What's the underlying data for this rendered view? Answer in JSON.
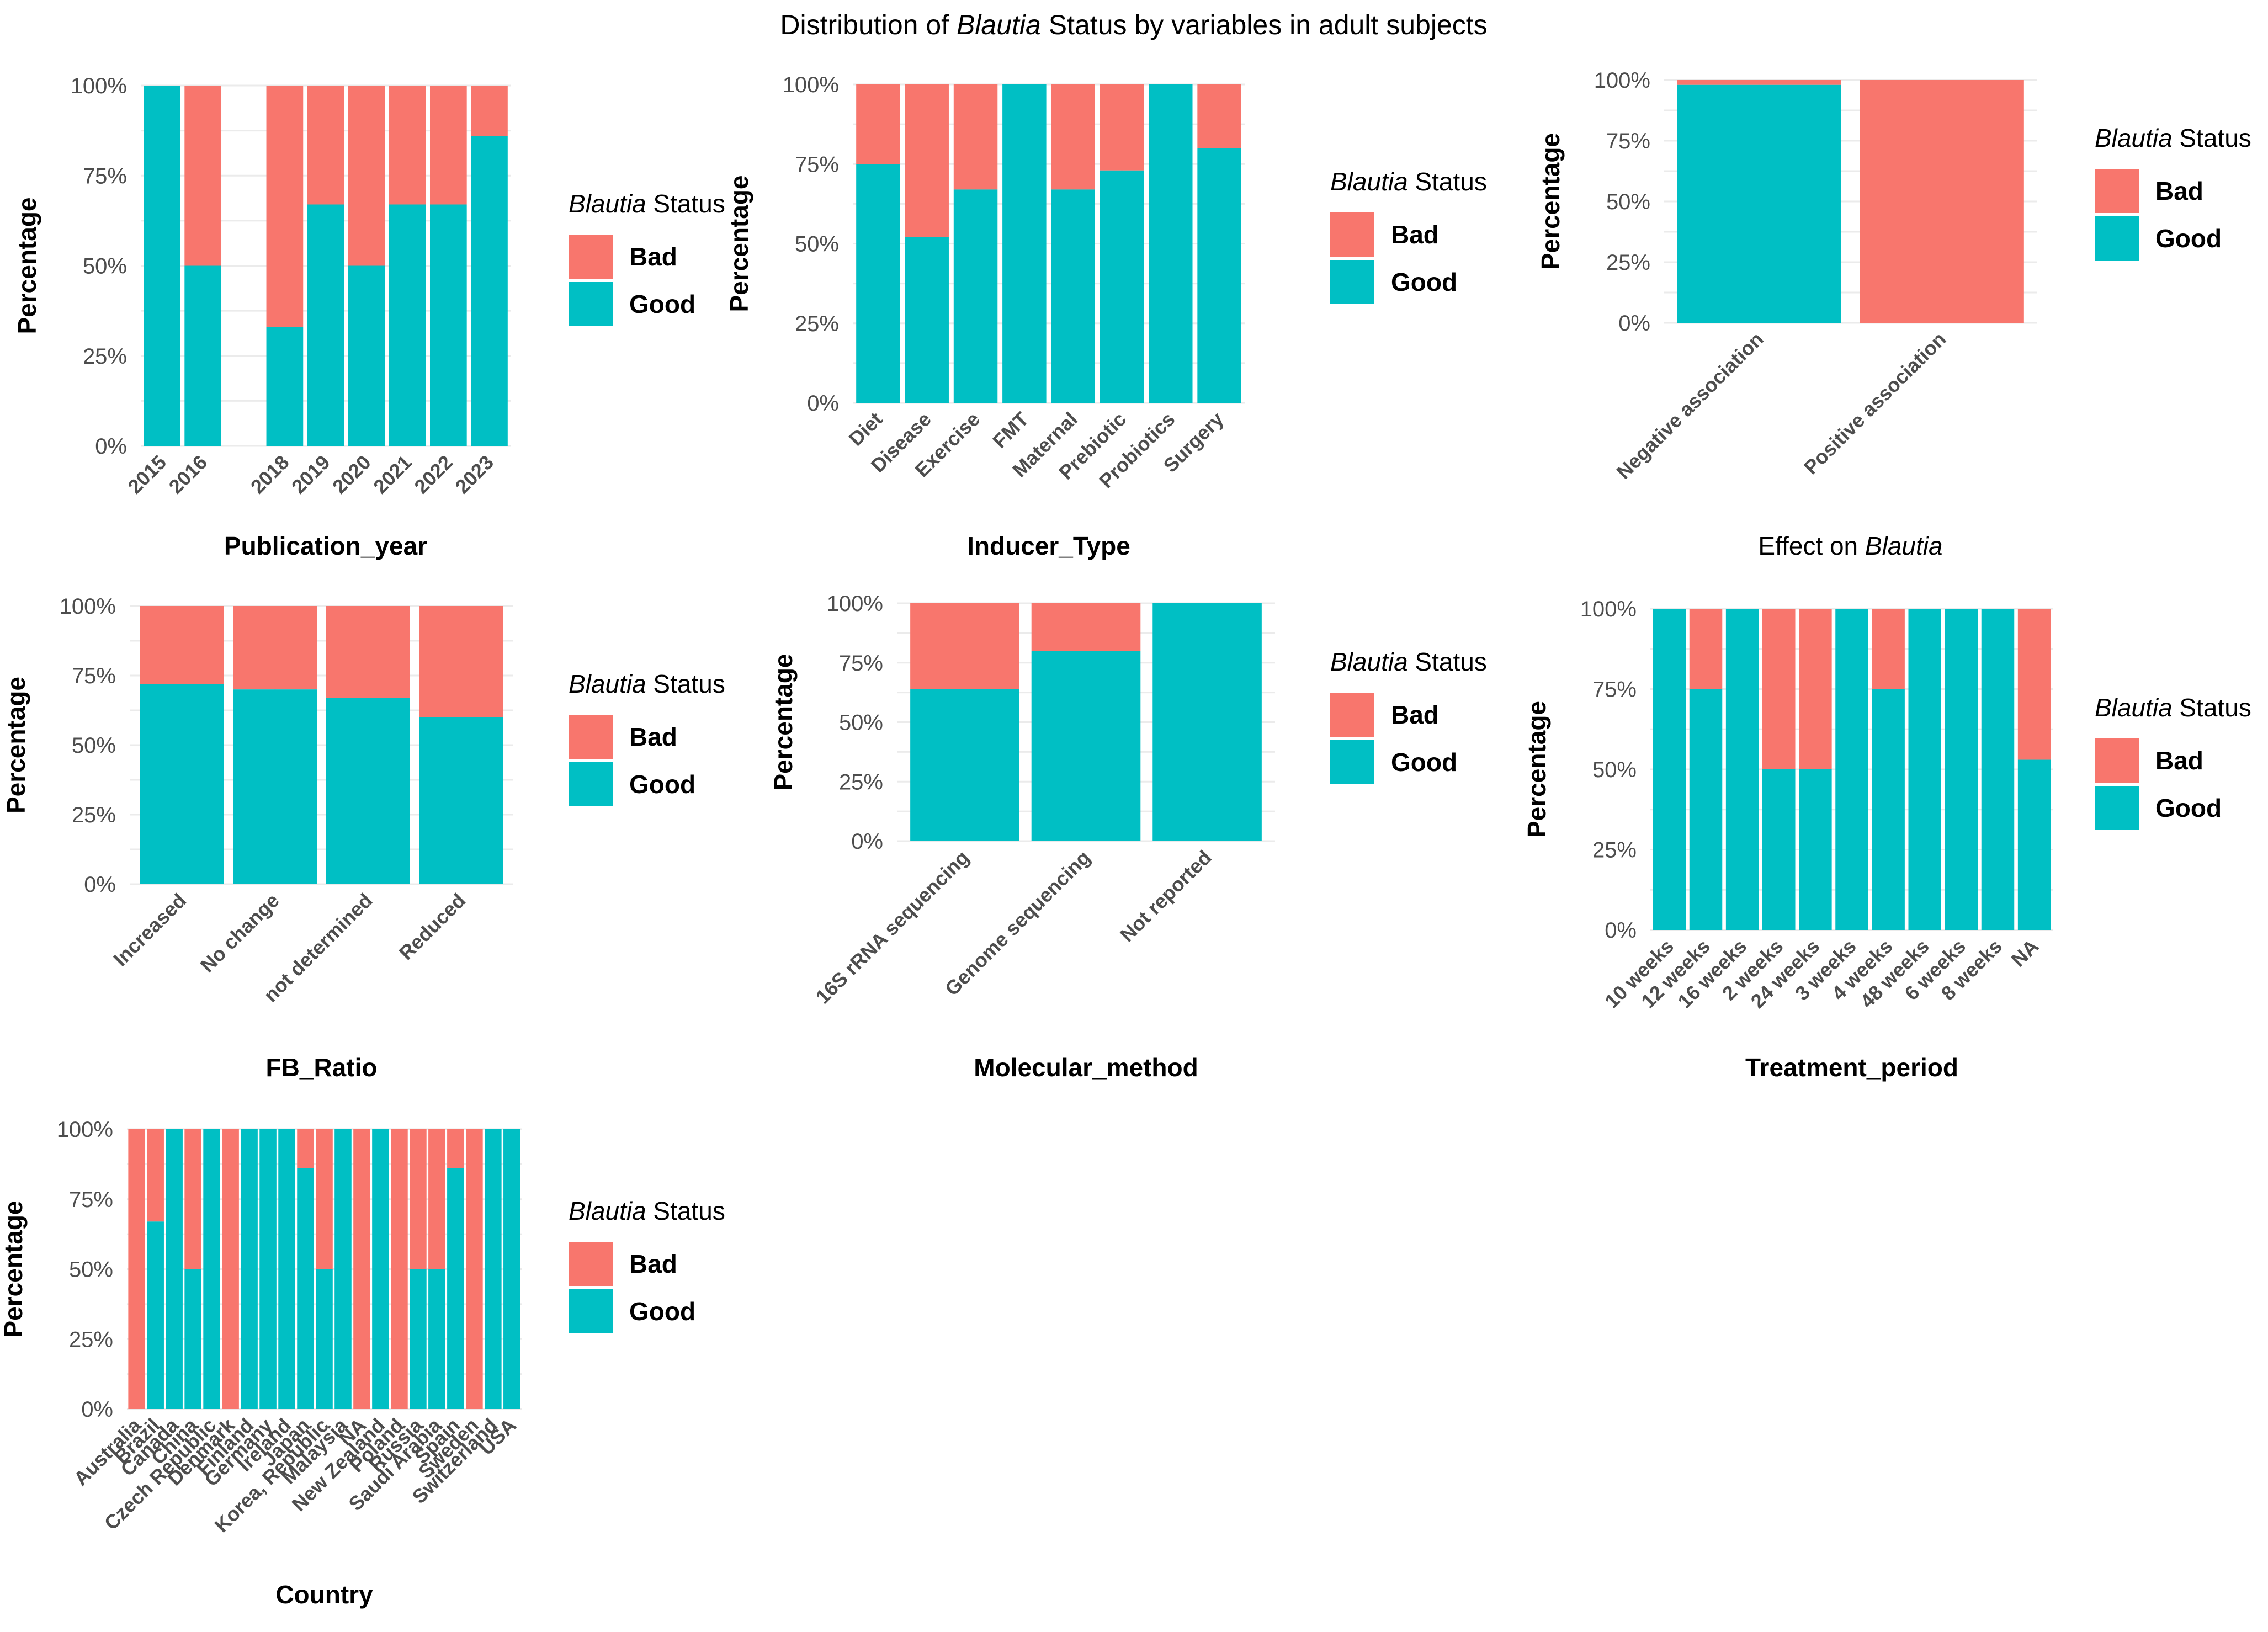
{
  "figure": {
    "title_pre": "Distribution of ",
    "title_italic": "Blautia",
    "title_post": " Status by variables in adult subjects"
  },
  "colors": {
    "Bad": "#F8766D",
    "Good": "#00BFC4"
  },
  "legend": {
    "title_italic": "Blautia",
    "title_rest": " Status",
    "entries": [
      "Bad",
      "Good"
    ]
  },
  "y_tick_labels": [
    "0%",
    "25%",
    "50%",
    "75%",
    "100%"
  ],
  "ylabel": "Percentage",
  "chart_data": [
    {
      "type": "bar",
      "stacked": true,
      "xlabel": "Publication_year",
      "ylabel": "Percentage",
      "ylim": [
        0,
        100
      ],
      "categories": [
        "2015",
        "2016",
        "",
        "2018",
        "2019",
        "2020",
        "2021",
        "2022",
        "2023"
      ],
      "series": [
        {
          "name": "Good",
          "values": [
            100,
            50,
            null,
            33,
            67,
            50,
            67,
            67,
            86
          ]
        },
        {
          "name": "Bad",
          "values": [
            0,
            50,
            null,
            67,
            33,
            50,
            33,
            33,
            14
          ]
        }
      ]
    },
    {
      "type": "bar",
      "stacked": true,
      "xlabel": "Inducer_Type",
      "ylabel": "Percentage",
      "ylim": [
        0,
        100
      ],
      "categories": [
        "Diet",
        "Disease",
        "Exercise",
        "FMT",
        "Maternal",
        "Prebiotic",
        "Probiotics",
        "Surgery"
      ],
      "series": [
        {
          "name": "Good",
          "values": [
            75,
            52,
            67,
            100,
            67,
            73,
            100,
            80
          ]
        },
        {
          "name": "Bad",
          "values": [
            25,
            48,
            33,
            0,
            33,
            27,
            0,
            20
          ]
        }
      ]
    },
    {
      "type": "bar",
      "stacked": true,
      "xlabel_pre": "Effect on ",
      "xlabel_italic": "Blautia",
      "ylabel": "Percentage",
      "ylim": [
        0,
        100
      ],
      "categories": [
        "Negative association",
        "Positive association"
      ],
      "series": [
        {
          "name": "Good",
          "values": [
            98,
            0
          ]
        },
        {
          "name": "Bad",
          "values": [
            2,
            100
          ]
        }
      ]
    },
    {
      "type": "bar",
      "stacked": true,
      "xlabel": "FB_Ratio",
      "ylabel": "Percentage",
      "ylim": [
        0,
        100
      ],
      "categories": [
        "Increased",
        "No change",
        "not determined",
        "Reduced"
      ],
      "series": [
        {
          "name": "Good",
          "values": [
            72,
            70,
            67,
            60
          ]
        },
        {
          "name": "Bad",
          "values": [
            28,
            30,
            33,
            40
          ]
        }
      ]
    },
    {
      "type": "bar",
      "stacked": true,
      "xlabel": "Molecular_method",
      "ylabel": "Percentage",
      "ylim": [
        0,
        100
      ],
      "categories": [
        "16S rRNA sequencing",
        "Genome sequencing",
        "Not reported"
      ],
      "series": [
        {
          "name": "Good",
          "values": [
            64,
            80,
            100
          ]
        },
        {
          "name": "Bad",
          "values": [
            36,
            20,
            0
          ]
        }
      ]
    },
    {
      "type": "bar",
      "stacked": true,
      "xlabel": "Treatment_period",
      "ylabel": "Percentage",
      "ylim": [
        0,
        100
      ],
      "categories": [
        "10 weeks",
        "12 weeks",
        "16 weeks",
        "2 weeks",
        "24 weeks",
        "3 weeks",
        "4 weeks",
        "48 weeks",
        "6 weeks",
        "8 weeks",
        "NA"
      ],
      "series": [
        {
          "name": "Good",
          "values": [
            100,
            75,
            100,
            50,
            50,
            100,
            75,
            100,
            100,
            100,
            53
          ]
        },
        {
          "name": "Bad",
          "values": [
            0,
            25,
            0,
            50,
            50,
            0,
            25,
            0,
            0,
            0,
            47
          ]
        }
      ]
    },
    {
      "type": "bar",
      "stacked": true,
      "xlabel": "Country",
      "ylabel": "Percentage",
      "ylim": [
        0,
        100
      ],
      "categories": [
        "Australia",
        "Brazil",
        "Canada",
        "China",
        "Czech Republic",
        "Denmark",
        "Finland",
        "Germany",
        "Ireland",
        "Japan",
        "Korea, Republic",
        "Malaysia",
        "NA",
        "New Zealand",
        "Poland",
        "Russia",
        "Saudi Arabia",
        "Spain",
        "Sweden",
        "Switzerland",
        "USA"
      ],
      "series": [
        {
          "name": "Good",
          "values": [
            0,
            67,
            100,
            50,
            100,
            0,
            100,
            100,
            100,
            86,
            50,
            100,
            0,
            100,
            0,
            50,
            50,
            86,
            0,
            100,
            100
          ]
        },
        {
          "name": "Bad",
          "values": [
            100,
            33,
            0,
            50,
            0,
            100,
            0,
            0,
            0,
            14,
            50,
            0,
            100,
            0,
            100,
            50,
            50,
            14,
            100,
            0,
            0
          ]
        }
      ]
    }
  ]
}
